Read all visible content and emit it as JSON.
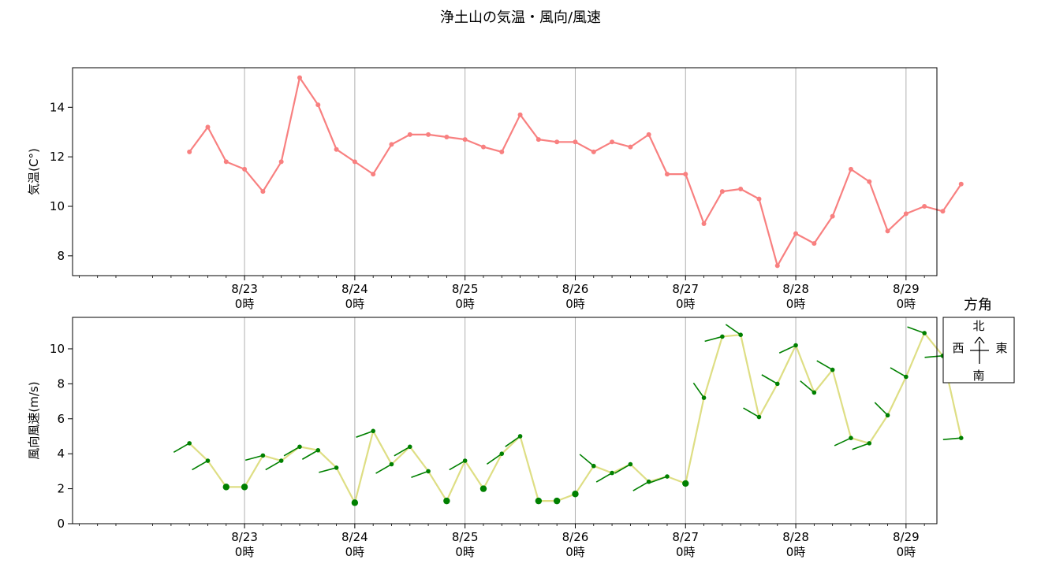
{
  "title": "浄土山の気温・風向/風速",
  "compass": {
    "title": "方角",
    "north": "北",
    "south": "南",
    "east": "東",
    "west": "西"
  },
  "colors": {
    "temp_line": "#f88080",
    "wind_line": "#dede84",
    "wind_marker": "#008000",
    "grid": "#b0b0b0"
  },
  "chart_data": [
    {
      "type": "line",
      "ylabel": "気温(C°)",
      "ylim": [
        7.2,
        15.6
      ],
      "yticks": [
        8,
        10,
        12,
        14
      ],
      "xlim": [
        -1.56,
        6.28
      ],
      "xticks": [
        {
          "x": 0,
          "label1": "8/23",
          "label2": "0時"
        },
        {
          "x": 1,
          "label1": "8/24",
          "label2": "0時"
        },
        {
          "x": 2,
          "label1": "8/25",
          "label2": "0時"
        },
        {
          "x": 3,
          "label1": "8/26",
          "label2": "0時"
        },
        {
          "x": 4,
          "label1": "8/27",
          "label2": "0時"
        },
        {
          "x": 5,
          "label1": "8/28",
          "label2": "0時"
        },
        {
          "x": 6,
          "label1": "8/29",
          "label2": "0時"
        }
      ],
      "grid": "vertical at each day",
      "series": [
        {
          "x": [
            -0.5,
            -0.3333,
            -0.1667,
            0,
            0.1667,
            0.3333,
            0.5,
            0.6667,
            0.8333,
            1,
            1.1667,
            1.3333,
            1.5,
            1.6667,
            1.8333,
            2,
            2.1667,
            2.3333,
            2.5,
            2.6667,
            2.8333,
            3,
            3.1667,
            3.3333,
            3.5,
            3.6667,
            3.8333,
            4,
            4.1667,
            4.3333,
            4.5,
            4.6667,
            4.8333,
            5,
            5.1667,
            5.3333,
            5.5,
            5.6667,
            5.8333,
            6,
            6.1667,
            6.3333,
            6.5
          ],
          "values": [
            12.2,
            13.2,
            11.8,
            11.5,
            10.6,
            11.8,
            15.2,
            14.1,
            12.3,
            11.8,
            11.3,
            12.5,
            12.9,
            12.9,
            12.8,
            12.7,
            12.4,
            12.2,
            13.7,
            12.7,
            12.6,
            12.6,
            12.2,
            12.6,
            12.4,
            12.9,
            11.3,
            11.3,
            9.3,
            10.6,
            10.7,
            10.3,
            7.6,
            8.9,
            8.5,
            9.6,
            11.5,
            11.0,
            9.0,
            9.7,
            10.0,
            9.8,
            10.9
          ]
        }
      ]
    },
    {
      "type": "line",
      "ylabel": "風向風速(m/s)",
      "ylim": [
        0,
        11.8
      ],
      "yticks": [
        0,
        2,
        4,
        6,
        8,
        10
      ],
      "xlim": [
        -1.56,
        6.28
      ],
      "xticks": [
        {
          "x": 0,
          "label1": "8/23",
          "label2": "0時"
        },
        {
          "x": 1,
          "label1": "8/24",
          "label2": "0時"
        },
        {
          "x": 2,
          "label1": "8/25",
          "label2": "0時"
        },
        {
          "x": 3,
          "label1": "8/26",
          "label2": "0時"
        },
        {
          "x": 4,
          "label1": "8/27",
          "label2": "0時"
        },
        {
          "x": 5,
          "label1": "8/28",
          "label2": "0時"
        },
        {
          "x": 6,
          "label1": "8/29",
          "label2": "0時"
        }
      ],
      "grid": "vertical at each day",
      "series": [
        {
          "x": [
            -0.5,
            -0.3333,
            -0.1667,
            0,
            0.1667,
            0.3333,
            0.5,
            0.6667,
            0.8333,
            1,
            1.1667,
            1.3333,
            1.5,
            1.6667,
            1.8333,
            2,
            2.1667,
            2.3333,
            2.5,
            2.6667,
            2.8333,
            3,
            3.1667,
            3.3333,
            3.5,
            3.6667,
            3.8333,
            4,
            4.1667,
            4.3333,
            4.5,
            4.6667,
            4.8333,
            5,
            5.1667,
            5.3333,
            5.5,
            5.6667,
            5.8333,
            6,
            6.1667,
            6.3333,
            6.5
          ],
          "values": [
            4.6,
            3.6,
            2.1,
            2.1,
            3.9,
            3.6,
            4.4,
            4.2,
            3.2,
            1.2,
            5.3,
            3.4,
            4.4,
            3.0,
            1.3,
            3.6,
            2.0,
            4.0,
            5.0,
            1.3,
            1.3,
            1.7,
            3.3,
            2.9,
            3.4,
            2.4,
            2.7,
            2.3,
            7.2,
            10.7,
            10.8,
            6.1,
            8.0,
            10.2,
            7.5,
            8.8,
            4.9,
            4.6,
            6.2,
            8.4,
            10.9,
            9.6,
            4.9
          ],
          "wind_from_deg": [
            240,
            240,
            null,
            null,
            255,
            240,
            240,
            240,
            255,
            null,
            250,
            240,
            240,
            250,
            null,
            240,
            null,
            235,
            235,
            null,
            null,
            null,
            310,
            240,
            240,
            240,
            250,
            null,
            325,
            255,
            305,
            300,
            300,
            245,
            310,
            300,
            245,
            250,
            315,
            300,
            290,
            265,
            265
          ]
        }
      ]
    }
  ]
}
